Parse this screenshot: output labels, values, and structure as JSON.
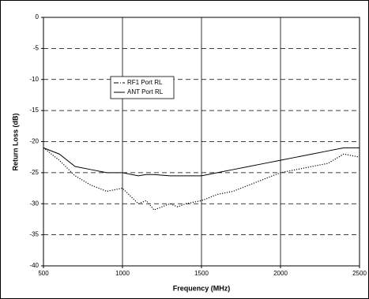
{
  "chart_data": {
    "type": "line",
    "x_label": "Frequency (MHz)",
    "y_label": "Return Loss (dB)",
    "xlim": [
      500,
      2500
    ],
    "xticks": [
      500,
      1000,
      1500,
      2000,
      2500
    ],
    "ylim": [
      -40,
      0
    ],
    "yticks": [
      -40,
      -35,
      -30,
      -25,
      -20,
      -15,
      -10,
      -5,
      0
    ],
    "grid": true,
    "x": [
      500,
      600,
      700,
      800,
      900,
      1000,
      1100,
      1150,
      1200,
      1300,
      1350,
      1400,
      1500,
      1600,
      1700,
      1800,
      1900,
      2000,
      2100,
      2200,
      2300,
      2400,
      2500
    ],
    "series": [
      {
        "name": "RF1 Port RL",
        "color": "#000000",
        "style": "dotted",
        "values": [
          -21,
          -23,
          -25.5,
          -27,
          -28,
          -27.5,
          -30,
          -29.5,
          -31,
          -30,
          -30.5,
          -30,
          -29.5,
          -28.5,
          -28,
          -27,
          -26,
          -25,
          -24.5,
          -24,
          -23.5,
          -22,
          -22.5
        ]
      },
      {
        "name": "ANT Port RL",
        "color": "#000000",
        "style": "solid",
        "values": [
          -21,
          -22,
          -24,
          -24.5,
          -25,
          -25,
          -25.5,
          -25.3,
          -25.3,
          -25.5,
          -25.5,
          -25.5,
          -25.5,
          -25,
          -24.5,
          -24,
          -23.5,
          -23,
          -22.5,
          -22,
          -21.5,
          -21,
          -21
        ]
      }
    ]
  }
}
